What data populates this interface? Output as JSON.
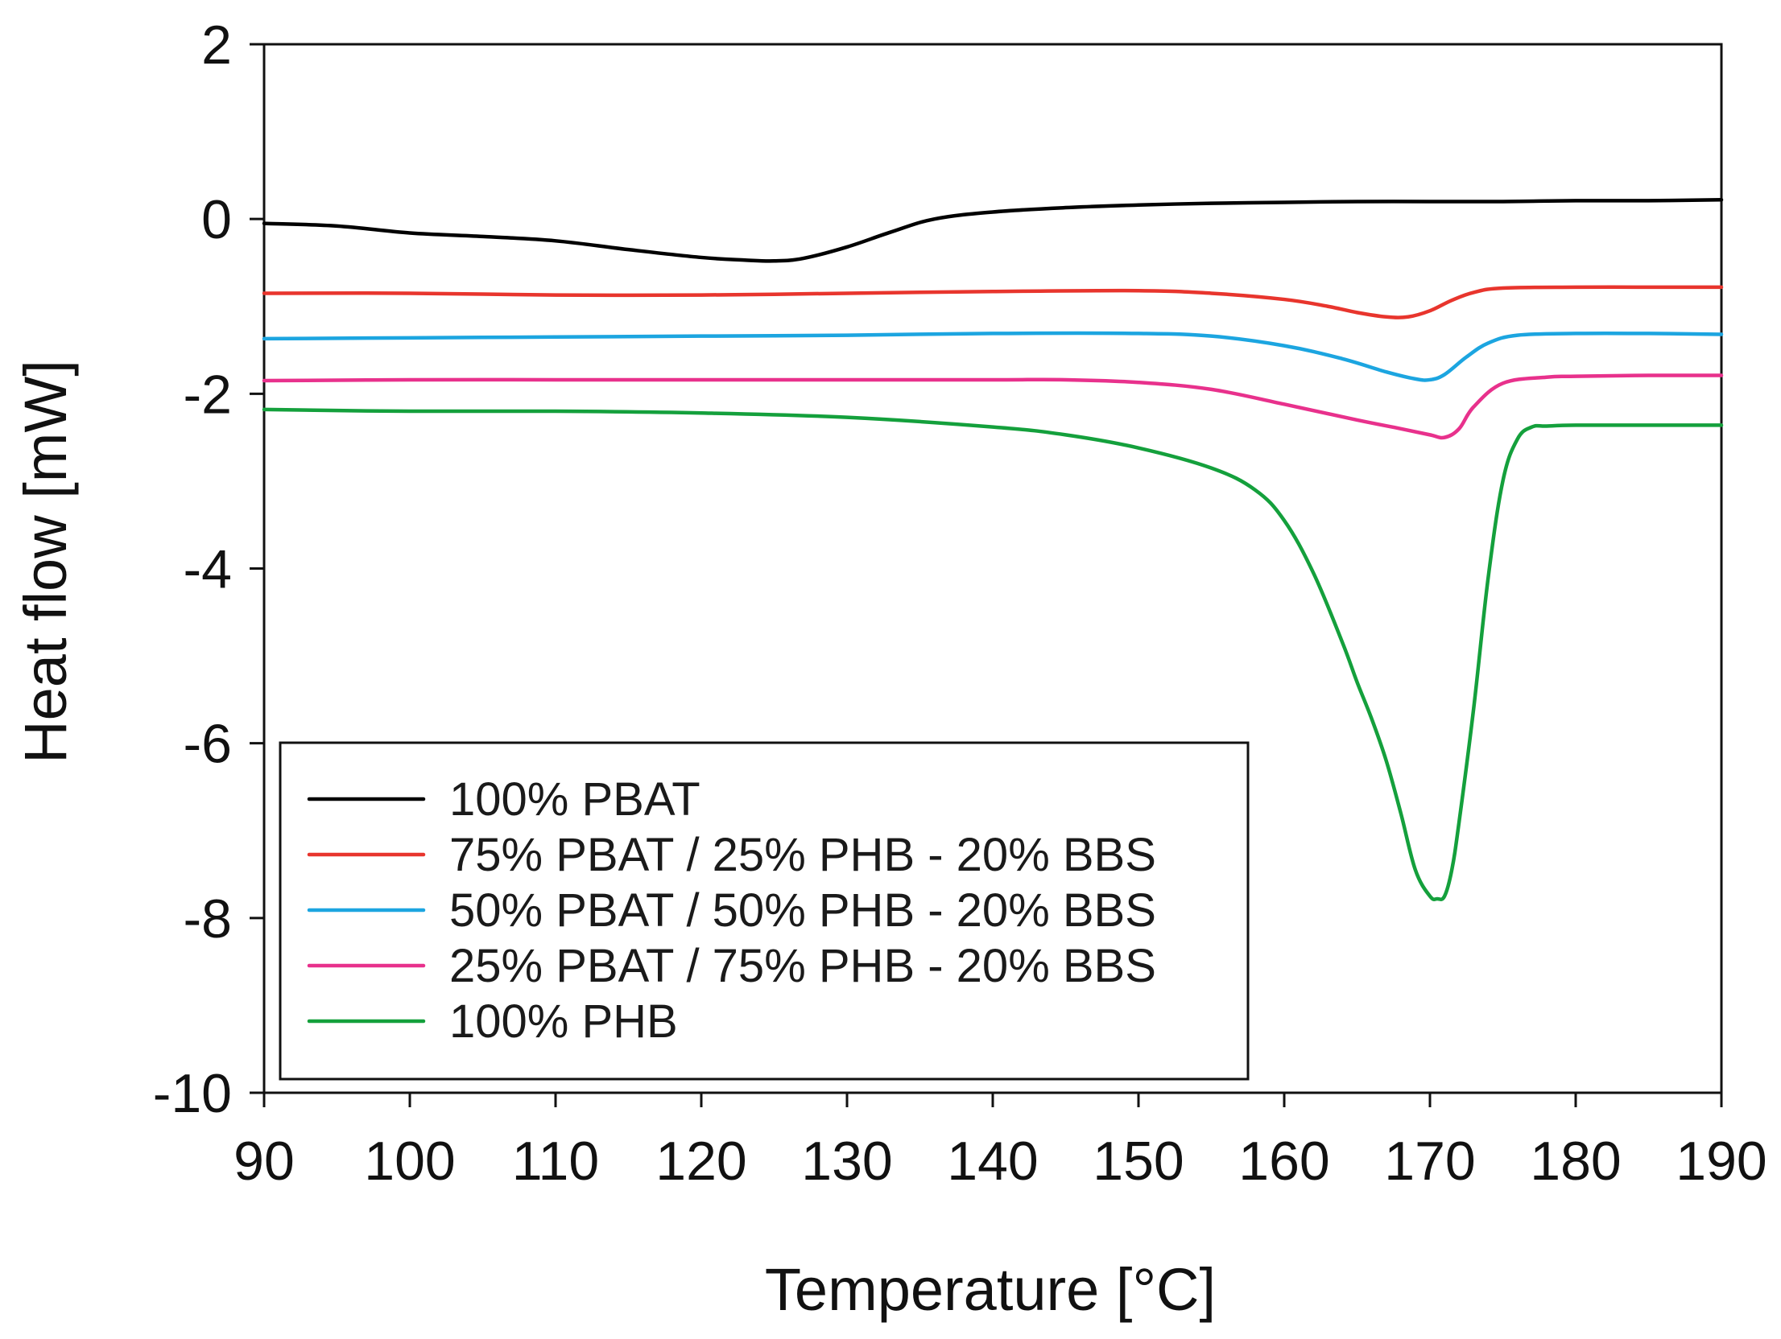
{
  "chart_data": {
    "type": "line",
    "title": "",
    "xlabel": "Temperature [°C]",
    "ylabel": "Heat flow [mW]",
    "xlim": [
      90,
      190
    ],
    "ylim": [
      -10,
      2
    ],
    "xticks": [
      90,
      100,
      110,
      120,
      130,
      140,
      150,
      160,
      170,
      180,
      190
    ],
    "yticks": [
      -10,
      -8,
      -6,
      -4,
      -2,
      0,
      2
    ],
    "xtick_labels": [
      "90",
      "100",
      "110",
      "120",
      "130",
      "140",
      "150",
      "160",
      "170",
      "180",
      "190"
    ],
    "ytick_labels": [
      "-10",
      "-8",
      "-6",
      "-4",
      "-2",
      "0",
      "2"
    ],
    "grid": false,
    "legend_position": "bottom-left",
    "series": [
      {
        "name": "100% PBAT",
        "color": "#000000",
        "x": [
          90,
          95,
          100,
          105,
          110,
          115,
          120,
          123,
          125,
          127,
          130,
          133,
          136,
          140,
          145,
          150,
          155,
          160,
          165,
          170,
          175,
          180,
          185,
          190
        ],
        "y": [
          -0.05,
          -0.08,
          -0.16,
          -0.2,
          -0.25,
          -0.35,
          -0.44,
          -0.47,
          -0.48,
          -0.45,
          -0.32,
          -0.15,
          0.0,
          0.08,
          0.13,
          0.16,
          0.18,
          0.19,
          0.2,
          0.2,
          0.2,
          0.21,
          0.21,
          0.22
        ]
      },
      {
        "name": "75% PBAT / 25% PHB - 20% BBS",
        "color": "#e8352d",
        "x": [
          90,
          100,
          110,
          120,
          130,
          140,
          150,
          155,
          160,
          163,
          165,
          167,
          168.5,
          170,
          171.5,
          173,
          175,
          180,
          185,
          190
        ],
        "y": [
          -0.85,
          -0.85,
          -0.87,
          -0.87,
          -0.85,
          -0.83,
          -0.82,
          -0.85,
          -0.92,
          -1.0,
          -1.07,
          -1.12,
          -1.12,
          -1.05,
          -0.93,
          -0.84,
          -0.79,
          -0.78,
          -0.78,
          -0.78
        ]
      },
      {
        "name": "50% PBAT / 50% PHB - 20% BBS",
        "color": "#1ca5e0",
        "x": [
          90,
          100,
          110,
          120,
          130,
          140,
          150,
          155,
          160,
          164,
          167,
          169,
          170,
          171,
          172.5,
          174,
          176,
          180,
          185,
          190
        ],
        "y": [
          -1.37,
          -1.36,
          -1.35,
          -1.34,
          -1.33,
          -1.31,
          -1.31,
          -1.34,
          -1.45,
          -1.6,
          -1.75,
          -1.83,
          -1.84,
          -1.78,
          -1.58,
          -1.42,
          -1.33,
          -1.31,
          -1.31,
          -1.32
        ]
      },
      {
        "name": "25% PBAT / 75% PHB - 20% BBS",
        "color": "#e8318c",
        "x": [
          90,
          100,
          110,
          120,
          130,
          140,
          145,
          150,
          155,
          160,
          165,
          168,
          170,
          171,
          172,
          173,
          175,
          178,
          180,
          185,
          190
        ],
        "y": [
          -1.85,
          -1.84,
          -1.84,
          -1.84,
          -1.84,
          -1.84,
          -1.84,
          -1.87,
          -1.95,
          -2.12,
          -2.3,
          -2.4,
          -2.47,
          -2.5,
          -2.4,
          -2.15,
          -1.88,
          -1.81,
          -1.8,
          -1.79,
          -1.79
        ]
      },
      {
        "name": "100% PHB",
        "color": "#14a03c",
        "x": [
          90,
          100,
          110,
          120,
          130,
          140,
          145,
          150,
          155,
          158,
          160,
          162,
          164,
          165,
          166,
          167,
          168,
          169,
          170,
          170.5,
          171,
          171.5,
          172,
          173,
          174,
          175,
          176,
          177,
          178,
          180,
          185,
          190
        ],
        "y": [
          -2.18,
          -2.2,
          -2.2,
          -2.22,
          -2.27,
          -2.38,
          -2.47,
          -2.62,
          -2.85,
          -3.1,
          -3.45,
          -4.05,
          -4.85,
          -5.3,
          -5.72,
          -6.2,
          -6.8,
          -7.45,
          -7.75,
          -7.78,
          -7.75,
          -7.45,
          -6.9,
          -5.6,
          -4.1,
          -3.0,
          -2.52,
          -2.38,
          -2.37,
          -2.36,
          -2.36,
          -2.36
        ]
      }
    ]
  }
}
